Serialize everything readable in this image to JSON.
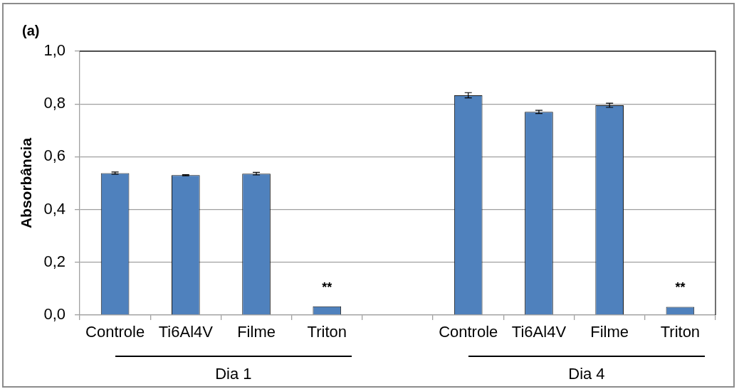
{
  "chart_data": {
    "type": "bar",
    "title": "(a)",
    "ylabel": "Absorbância",
    "categories": [
      "Controle",
      "Ti6Al4V",
      "Filme",
      "Triton",
      null,
      "Controle",
      "Ti6Al4V",
      "Filme",
      "Triton"
    ],
    "values": [
      0.538,
      0.53,
      0.536,
      0.033,
      null,
      0.833,
      0.77,
      0.795,
      0.031
    ],
    "errors": [
      0.004,
      0.002,
      0.005,
      null,
      null,
      0.01,
      0.006,
      0.008,
      null
    ],
    "value_labels": [
      null,
      null,
      null,
      "**",
      null,
      null,
      null,
      null,
      "**"
    ],
    "color": "#4f81bd",
    "ylim": [
      0,
      1
    ],
    "yticks": [
      {
        "value": 0,
        "label": "0,0"
      },
      {
        "value": 0.2,
        "label": "0,2"
      },
      {
        "value": 0.4,
        "label": "0,4"
      },
      {
        "value": 0.6,
        "label": "0,6"
      },
      {
        "value": 0.8,
        "label": "0,8"
      },
      {
        "value": 1,
        "label": "1,0"
      }
    ],
    "grid": "y",
    "annotations": [
      "Dia 1",
      "Dia 4"
    ]
  }
}
